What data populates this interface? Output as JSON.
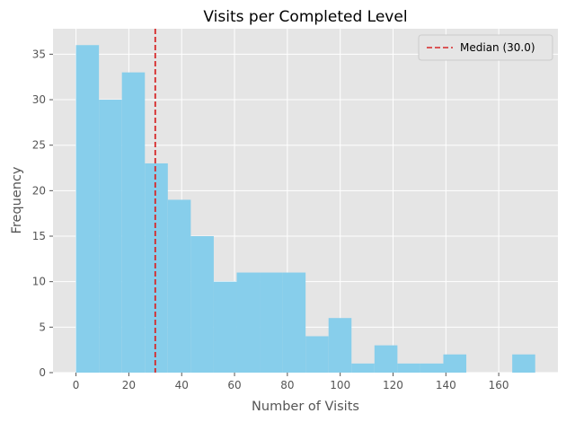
{
  "chart_data": {
    "type": "histogram",
    "title": "Visits per Completed Level",
    "xlabel": "Number of Visits",
    "ylabel": "Frequency",
    "xlim": [
      -8.7,
      182.4
    ],
    "ylim": [
      0,
      37.8
    ],
    "xticks": [
      0,
      20,
      40,
      60,
      80,
      100,
      120,
      140,
      160
    ],
    "yticks": [
      0,
      5,
      10,
      15,
      20,
      25,
      30,
      35
    ],
    "bin_width": 8.69,
    "bins": [
      {
        "start": 0.0,
        "count": 36
      },
      {
        "start": 8.69,
        "count": 30
      },
      {
        "start": 17.38,
        "count": 33
      },
      {
        "start": 26.07,
        "count": 23
      },
      {
        "start": 34.76,
        "count": 19
      },
      {
        "start": 43.45,
        "count": 15
      },
      {
        "start": 52.14,
        "count": 10
      },
      {
        "start": 60.83,
        "count": 11
      },
      {
        "start": 69.52,
        "count": 11
      },
      {
        "start": 78.21,
        "count": 11
      },
      {
        "start": 86.9,
        "count": 4
      },
      {
        "start": 95.59,
        "count": 6
      },
      {
        "start": 104.28,
        "count": 1
      },
      {
        "start": 112.97,
        "count": 3
      },
      {
        "start": 121.66,
        "count": 1
      },
      {
        "start": 130.35,
        "count": 1
      },
      {
        "start": 139.04,
        "count": 2
      },
      {
        "start": 147.73,
        "count": 0
      },
      {
        "start": 156.42,
        "count": 0
      },
      {
        "start": 165.11,
        "count": 2
      }
    ],
    "median": {
      "value": 30.0,
      "label": "Median (30.0)",
      "color": "#d62728"
    },
    "bar_color": "#87ceeb",
    "background_color": "#e5e5e5",
    "grid": true,
    "legend_position": "top-right"
  }
}
